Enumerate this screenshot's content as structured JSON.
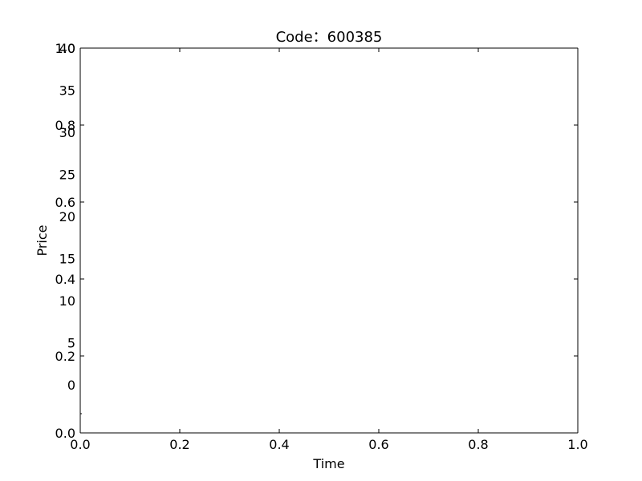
{
  "chart_data": [
    {
      "type": "line",
      "title": "Code：600385",
      "xlabel": "Time",
      "ylabel": "Price",
      "xlim": [
        0.0,
        1.0
      ],
      "ylim": [
        0.0,
        1.0
      ],
      "x_ticks": [
        "0.0",
        "0.2",
        "0.4",
        "0.6",
        "0.8",
        "1.0"
      ],
      "y_ticks": [
        "0.0",
        "0.2",
        "0.4",
        "0.6",
        "0.8",
        "1.0"
      ],
      "grid": false,
      "series": []
    },
    {
      "type": "line",
      "ylim": [
        0,
        40
      ],
      "y_ticks": [
        "0",
        "5",
        "10",
        "15",
        "20",
        "25",
        "30",
        "35",
        "40"
      ],
      "grid": false,
      "series": []
    }
  ]
}
